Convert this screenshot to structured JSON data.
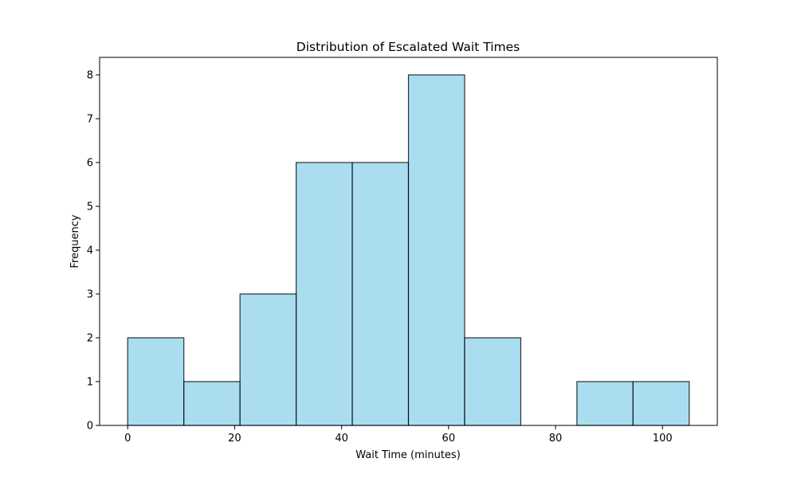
{
  "chart_data": {
    "type": "bar",
    "title": "Distribution of Escalated Wait Times",
    "xlabel": "Wait Time (minutes)",
    "ylabel": "Frequency",
    "bin_edges": [
      0,
      10.5,
      21,
      31.5,
      42,
      52.5,
      63,
      73.5,
      84,
      94.5,
      105
    ],
    "values": [
      2,
      1,
      3,
      6,
      6,
      8,
      2,
      0,
      1,
      1
    ],
    "xlim": [
      -5.25,
      110.25
    ],
    "ylim": [
      0,
      8.4
    ],
    "xticks": [
      0,
      20,
      40,
      60,
      80,
      100
    ],
    "yticks": [
      0,
      1,
      2,
      3,
      4,
      5,
      6,
      7,
      8
    ],
    "bar_color": "#87ceeb",
    "bar_opacity": 0.7,
    "edge_color": "#000000",
    "grid": false,
    "legend": "none"
  }
}
